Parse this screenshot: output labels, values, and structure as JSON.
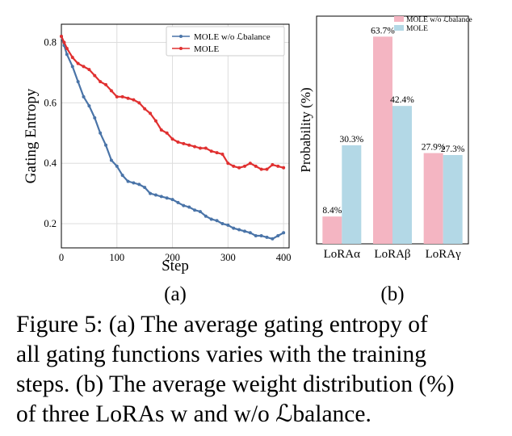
{
  "chart_data": [
    {
      "type": "line",
      "panel_label": "(a)",
      "xlabel": "Step",
      "ylabel": "Gating Entropy",
      "xlim": [
        0,
        410
      ],
      "ylim": [
        0.12,
        0.86
      ],
      "xticks": [
        0,
        100,
        200,
        300,
        400
      ],
      "yticks": [
        0.2,
        0.4,
        0.6,
        0.8
      ],
      "grid": true,
      "legend": "top-right",
      "series": [
        {
          "name": "MOLE w/o ℒbalance",
          "color": "#4a74a8",
          "x": [
            0,
            5,
            10,
            20,
            30,
            40,
            50,
            60,
            70,
            80,
            90,
            100,
            110,
            120,
            130,
            140,
            150,
            160,
            170,
            180,
            190,
            200,
            210,
            220,
            230,
            240,
            250,
            260,
            270,
            280,
            290,
            300,
            310,
            320,
            330,
            340,
            350,
            360,
            370,
            380,
            390,
            400
          ],
          "y": [
            0.82,
            0.79,
            0.76,
            0.72,
            0.67,
            0.62,
            0.59,
            0.55,
            0.5,
            0.46,
            0.41,
            0.39,
            0.36,
            0.34,
            0.335,
            0.33,
            0.32,
            0.3,
            0.295,
            0.29,
            0.285,
            0.28,
            0.27,
            0.26,
            0.255,
            0.245,
            0.24,
            0.225,
            0.215,
            0.21,
            0.2,
            0.195,
            0.185,
            0.18,
            0.175,
            0.17,
            0.16,
            0.16,
            0.155,
            0.15,
            0.16,
            0.17
          ]
        },
        {
          "name": "MOLE",
          "color": "#e03030",
          "x": [
            0,
            5,
            10,
            20,
            30,
            40,
            50,
            60,
            70,
            80,
            90,
            100,
            110,
            120,
            130,
            140,
            150,
            160,
            170,
            180,
            190,
            200,
            210,
            220,
            230,
            240,
            250,
            260,
            270,
            280,
            290,
            300,
            310,
            320,
            330,
            340,
            350,
            360,
            370,
            380,
            390,
            400
          ],
          "y": [
            0.82,
            0.8,
            0.78,
            0.75,
            0.73,
            0.72,
            0.71,
            0.69,
            0.67,
            0.66,
            0.64,
            0.62,
            0.62,
            0.615,
            0.61,
            0.6,
            0.58,
            0.565,
            0.54,
            0.51,
            0.5,
            0.48,
            0.47,
            0.465,
            0.46,
            0.455,
            0.45,
            0.45,
            0.44,
            0.435,
            0.43,
            0.4,
            0.39,
            0.385,
            0.39,
            0.4,
            0.39,
            0.38,
            0.38,
            0.395,
            0.39,
            0.385
          ]
        }
      ]
    },
    {
      "type": "bar",
      "panel_label": "(b)",
      "ylabel": "Probability (%)",
      "ylim": [
        0,
        70
      ],
      "categories": [
        "LoRAα",
        "LoRAβ",
        "LoRAγ"
      ],
      "legend": "top-right",
      "series": [
        {
          "name": "MOLE w/o ℒbalance",
          "color": "#f4b5c2",
          "values": [
            8.4,
            63.7,
            27.9
          ],
          "labels": [
            "8.4%",
            "63.7%",
            "27.9%"
          ]
        },
        {
          "name": "MOLE",
          "color": "#b3d8e6",
          "values": [
            30.3,
            42.4,
            27.3
          ],
          "labels": [
            "30.3%",
            "42.4%",
            "27.3%"
          ]
        }
      ]
    }
  ],
  "caption": {
    "lines": [
      "Figure 5: (a) The average gating entropy of",
      "all gating functions varies with the training",
      "steps. (b) The average weight distribution (%)",
      "of three LoRAs w and w/o ℒbalance."
    ]
  }
}
